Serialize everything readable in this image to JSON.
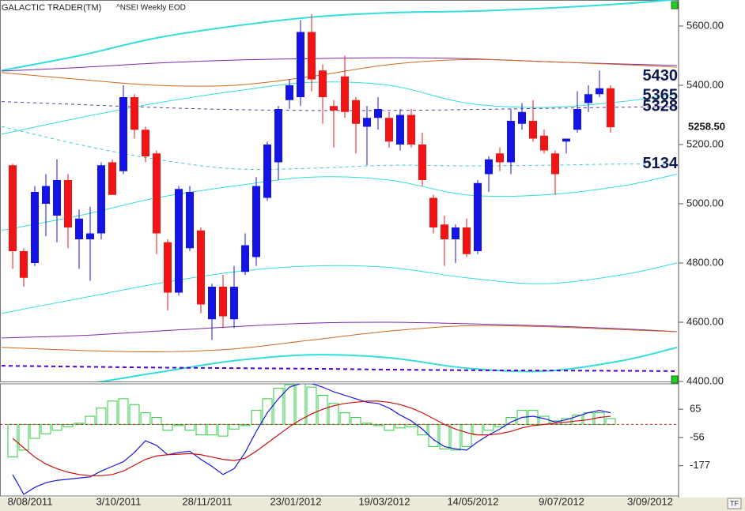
{
  "chart_data": [
    {
      "type": "candlestick",
      "title": "GALACTIC TRADER(TM)",
      "subtitle": "^NSEI Weekly EOD",
      "categories": [
        null,
        null,
        "8/08/2011",
        null,
        null,
        null,
        null,
        null,
        null,
        null,
        "3/10/2011",
        null,
        null,
        null,
        null,
        null,
        null,
        null,
        "28/11/2011",
        null,
        null,
        null,
        null,
        null,
        null,
        null,
        "23/01/2012",
        null,
        null,
        null,
        null,
        null,
        null,
        null,
        "19/03/2012",
        null,
        null,
        null,
        null,
        null,
        null,
        null,
        "14/05/2012",
        null,
        null,
        null,
        null,
        null,
        null,
        null,
        "9/07/2012",
        null,
        null,
        null,
        null,
        null,
        null,
        null,
        "3/09/2012"
      ],
      "open": [
        5130,
        4840,
        4800,
        5000,
        4960,
        5080,
        4880,
        4880,
        4900,
        5140,
        5110,
        5360,
        5250,
        5170,
        4870,
        4700,
        4850,
        4910,
        4610,
        4720,
        4610,
        4770,
        4820,
        5020,
        5140,
        5350,
        5360,
        5580,
        5450,
        5330,
        5430,
        5350,
        5260,
        5290,
        5290,
        5200,
        5300,
        5200,
        5020,
        4930,
        4880,
        4920,
        4840,
        5100,
        5170,
        5140,
        5270,
        5280,
        5230,
        5170,
        5210,
        5250,
        5340,
        5370,
        5390,
        null,
        null,
        null,
        null
      ],
      "high": [
        5135,
        4850,
        5060,
        5100,
        5150,
        5100,
        4980,
        4990,
        5140,
        5150,
        5400,
        5370,
        5260,
        5180,
        4880,
        5060,
        5060,
        4920,
        4730,
        4760,
        4790,
        4900,
        5090,
        5210,
        5330,
        5420,
        5620,
        5640,
        5470,
        5350,
        5500,
        5360,
        5330,
        5360,
        5310,
        5320,
        5320,
        5240,
        5030,
        4960,
        4930,
        4950,
        5080,
        5160,
        5190,
        5320,
        5340,
        5350,
        5250,
        5180,
        5220,
        5380,
        5400,
        5450,
        5400,
        null,
        null,
        null,
        null
      ],
      "low": [
        4780,
        4720,
        4790,
        4890,
        4870,
        4850,
        4780,
        4740,
        4880,
        5030,
        5100,
        5220,
        5140,
        4830,
        4640,
        4690,
        4840,
        4630,
        4540,
        4580,
        4580,
        4760,
        4790,
        5010,
        5080,
        5320,
        5330,
        5380,
        5270,
        5190,
        5290,
        5170,
        5130,
        5250,
        5190,
        5180,
        5190,
        5060,
        4900,
        4790,
        4800,
        4820,
        4830,
        5040,
        5110,
        5100,
        5250,
        5210,
        5170,
        5030,
        5170,
        5240,
        5310,
        5360,
        5240,
        null,
        null,
        null,
        null
      ],
      "close": [
        4840,
        4750,
        5040,
        5060,
        5080,
        4920,
        4950,
        4900,
        5130,
        5030,
        5360,
        5250,
        5160,
        4900,
        4700,
        5050,
        5040,
        4660,
        4720,
        4620,
        4720,
        4860,
        5060,
        5200,
        5320,
        5400,
        5580,
        5420,
        5360,
        5315,
        5310,
        5270,
        5290,
        5320,
        5210,
        5300,
        5200,
        5080,
        4920,
        4880,
        4920,
        4830,
        5070,
        5150,
        5140,
        5280,
        5310,
        5220,
        5180,
        5100,
        5220,
        5320,
        5370,
        5390,
        5258.5,
        null,
        null,
        null,
        null
      ],
      "up_color": "#1414e6",
      "down_color": "#f01414",
      "last_price": {
        "value": 5258.5,
        "label": "5258.50"
      },
      "annotations": [
        5430,
        5365,
        5328,
        5134
      ],
      "ylim": [
        4400,
        5688
      ],
      "yticks": [
        {
          "value": 4400,
          "label": "4400.00"
        },
        {
          "value": 4600,
          "label": "4600.00"
        },
        {
          "value": 4800,
          "label": "4800.00"
        },
        {
          "value": 5000,
          "label": "5000.00"
        },
        {
          "value": 5200,
          "label": "5200.00"
        },
        {
          "value": 5400,
          "label": "5400.00"
        },
        {
          "value": 5600,
          "label": "5600.00"
        }
      ],
      "overlay_x": [
        -1,
        6,
        13,
        20,
        27,
        34,
        41,
        48,
        55,
        60
      ],
      "overlays": [
        {
          "color": "#33dddd",
          "dashed": false,
          "thick": true,
          "values": [
            5450,
            5500,
            5560,
            5600,
            5630,
            5645,
            5650,
            5660,
            5675,
            5690
          ]
        },
        {
          "color": "#33dddd",
          "dashed": false,
          "thick": false,
          "values": [
            5235,
            5290,
            5340,
            5380,
            5410,
            5400,
            5340,
            5325,
            5345,
            5370
          ]
        },
        {
          "color": "#33dddd",
          "dashed": false,
          "thick": false,
          "values": [
            4910,
            4960,
            5020,
            5060,
            5090,
            5080,
            5030,
            5030,
            5060,
            5100
          ]
        },
        {
          "color": "#33dddd",
          "dashed": false,
          "thick": false,
          "values": [
            4630,
            4680,
            4730,
            4770,
            4790,
            4785,
            4750,
            4730,
            4760,
            4800
          ]
        },
        {
          "color": "#33dddd",
          "dashed": false,
          "thick": true,
          "values": [
            4380,
            4390,
            4430,
            4470,
            4490,
            4480,
            4445,
            4435,
            4470,
            4515
          ]
        },
        {
          "color": "#33cccc",
          "dashed": true,
          "thick": false,
          "values": [
            5261,
            5200,
            5150,
            5118,
            5120,
            5130,
            5128,
            5130,
            5134,
            5132
          ]
        },
        {
          "color": "#7a2aa8",
          "dashed": false,
          "thick": false,
          "values": [
            5448,
            5460,
            5475,
            5485,
            5490,
            5493,
            5490,
            5480,
            5472,
            5467
          ]
        },
        {
          "color": "#d2691e",
          "dashed": false,
          "thick": false,
          "values": [
            5443,
            5420,
            5400,
            5400,
            5430,
            5470,
            5487,
            5480,
            5470,
            5461
          ]
        },
        {
          "color": "#7a2aa8",
          "dashed": false,
          "thick": false,
          "values": [
            4547,
            4555,
            4570,
            4585,
            4597,
            4600,
            4595,
            4588,
            4578,
            4568
          ]
        },
        {
          "color": "#d2691e",
          "dashed": false,
          "thick": false,
          "values": [
            4515,
            4505,
            4500,
            4510,
            4540,
            4570,
            4588,
            4585,
            4575,
            4568
          ]
        },
        {
          "color": "#6633aa",
          "dashed": true,
          "thick": false,
          "values": [
            5345,
            5335,
            5325,
            5318,
            5315,
            5315,
            5318,
            5322,
            5326,
            5328
          ]
        },
        {
          "color": "#5500cc",
          "dashed": true,
          "thick": true,
          "values": [
            4453,
            4450,
            4447,
            4445,
            4443,
            4440,
            4438,
            4437,
            4436,
            4435
          ]
        }
      ]
    },
    {
      "type": "macd",
      "histogram": [
        -140,
        -110,
        -60,
        -40,
        -25,
        -10,
        5,
        35,
        70,
        100,
        110,
        85,
        50,
        30,
        -25,
        -5,
        -25,
        -45,
        -45,
        -50,
        -20,
        -5,
        60,
        110,
        155,
        170,
        175,
        160,
        125,
        90,
        50,
        30,
        5,
        -5,
        -25,
        -15,
        -10,
        -45,
        -95,
        -105,
        -110,
        -95,
        -45,
        -25,
        -10,
        30,
        60,
        60,
        35,
        15,
        25,
        40,
        50,
        50,
        25,
        null,
        null,
        null,
        null
      ],
      "histogram_color": "#2ecc40",
      "series": [
        {
          "color": "#1a1ae0",
          "values": [
            -215,
            -300,
            -270,
            -250,
            -240,
            -235,
            -230,
            -225,
            -200,
            -180,
            -160,
            -120,
            -70,
            -90,
            -130,
            -120,
            -115,
            -150,
            -180,
            -215,
            -190,
            -120,
            -30,
            50,
            110,
            160,
            175,
            175,
            160,
            140,
            125,
            110,
            95,
            90,
            70,
            40,
            15,
            -20,
            -65,
            -95,
            -105,
            -110,
            -75,
            -45,
            -20,
            10,
            30,
            35,
            25,
            10,
            20,
            35,
            50,
            60,
            50,
            null,
            null,
            null,
            null
          ]
        },
        {
          "color": "#cc1010",
          "values": [
            -60,
            -100,
            -140,
            -170,
            -190,
            -205,
            -215,
            -220,
            -220,
            -215,
            -200,
            -175,
            -150,
            -135,
            -130,
            -128,
            -125,
            -130,
            -140,
            -150,
            -155,
            -145,
            -115,
            -80,
            -45,
            -10,
            20,
            45,
            65,
            80,
            90,
            95,
            100,
            100,
            95,
            85,
            70,
            50,
            25,
            0,
            -20,
            -35,
            -45,
            -45,
            -40,
            -30,
            -15,
            -5,
            0,
            5,
            10,
            15,
            20,
            30,
            35,
            null,
            null,
            null,
            null
          ]
        }
      ],
      "ylim": [
        -307,
        174
      ],
      "yticks": [
        65,
        -56,
        -177
      ]
    }
  ]
}
